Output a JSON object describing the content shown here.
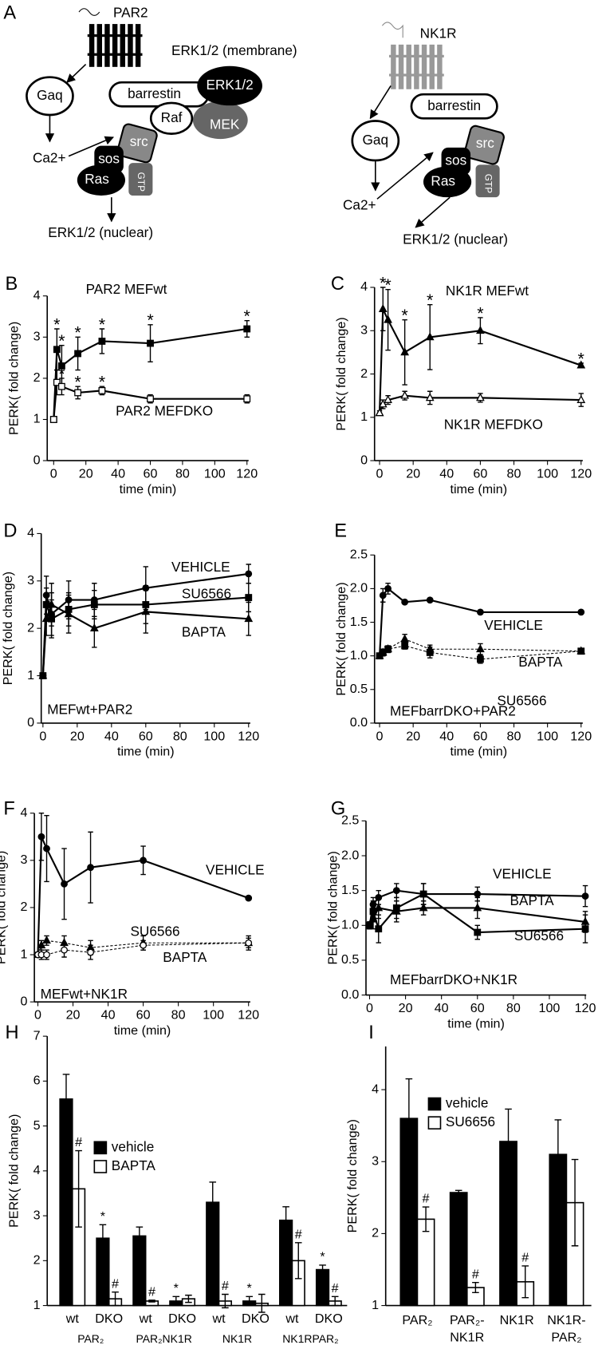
{
  "panel_a": {
    "label": "A",
    "left": [
      "PAR2",
      "ERK1/2 (membrane)",
      "Gaq",
      "barrestin",
      "ERK1/2",
      "MEK",
      "Raf",
      "Ca2+",
      "src",
      "sos",
      "Ras",
      "GTP",
      "ERK1/2 (nuclear)"
    ],
    "right": [
      "NK1R",
      "Gaq",
      "barrestin",
      "src",
      "sos",
      "Ras",
      "GTP",
      "Ca2+",
      "ERK1/2 (nuclear)"
    ]
  },
  "chart_data": [
    {
      "type": "line",
      "panel": "B",
      "y_label": "PERK( fold change)",
      "x_label": "time (min)",
      "x": [
        0,
        2,
        5,
        15,
        30,
        60,
        120
      ],
      "xlim": [
        -4,
        121
      ],
      "xticks": [
        0,
        20,
        40,
        60,
        80,
        100,
        120
      ],
      "ylim": [
        0,
        4
      ],
      "yticks": [
        0,
        1,
        2,
        3,
        4
      ],
      "series": [
        {
          "name": "PAR2 MEFwt",
          "color": "#000000",
          "marker": "square",
          "open": false,
          "dash": false,
          "values": [
            1,
            2.7,
            2.3,
            2.6,
            2.9,
            2.85,
            3.2
          ],
          "errors": [
            0,
            0.5,
            0.5,
            0.4,
            0.3,
            0.45,
            0.2
          ],
          "markers": [
            null,
            "*",
            "*",
            "*",
            "*",
            "*",
            "*"
          ]
        },
        {
          "name": "PAR2 MEFDKO",
          "color": "#000000",
          "marker": "square",
          "open": true,
          "dash": false,
          "values": [
            1,
            1.9,
            1.8,
            1.65,
            1.7,
            1.5,
            1.5
          ],
          "errors": [
            0,
            0.3,
            0.2,
            0.15,
            0.1,
            0.1,
            0.1
          ],
          "markers": [
            null,
            null,
            "*",
            "*",
            "*",
            null,
            null
          ]
        }
      ]
    },
    {
      "type": "line",
      "panel": "C",
      "y_label": "PERK( fold change)",
      "x_label": "time (min)",
      "x": [
        0,
        2,
        5,
        15,
        30,
        60,
        120
      ],
      "xlim": [
        -3,
        121
      ],
      "xticks": [
        0,
        20,
        40,
        60,
        80,
        100,
        120
      ],
      "ylim": [
        0,
        4
      ],
      "yticks": [
        0,
        1,
        2,
        3,
        4
      ],
      "series": [
        {
          "name": "NK1R MEFwt",
          "color": "#000000",
          "marker": "triangle",
          "open": false,
          "dash": false,
          "values": [
            1.1,
            3.5,
            3.25,
            2.5,
            2.85,
            3.0,
            2.2
          ],
          "errors": [
            0,
            0.5,
            0.7,
            0.75,
            0.75,
            0.3,
            0.05
          ],
          "markers": [
            null,
            "*",
            "*",
            "*",
            "*",
            "*",
            "*"
          ]
        },
        {
          "name": "NK1R MEFDKO",
          "color": "#000000",
          "marker": "triangle",
          "open": true,
          "dash": false,
          "values": [
            1.1,
            1.3,
            1.4,
            1.5,
            1.45,
            1.45,
            1.4
          ],
          "errors": [
            0.05,
            0.1,
            0.1,
            0.1,
            0.15,
            0.1,
            0.15
          ],
          "markers": [
            null,
            null,
            null,
            null,
            null,
            null,
            null
          ]
        }
      ]
    },
    {
      "type": "line",
      "panel": "D",
      "y_label": "PERK( fold change)",
      "x_label": "time (min)",
      "annotation": "MEFwt+PAR2",
      "x": [
        0,
        2,
        5,
        15,
        30,
        60,
        120
      ],
      "xlim": [
        -1,
        121
      ],
      "xticks": [
        0,
        20,
        40,
        60,
        80,
        100,
        120
      ],
      "ylim": [
        0,
        4
      ],
      "yticks": [
        0,
        1,
        2,
        3,
        4
      ],
      "series": [
        {
          "name": "VEHICLE",
          "color": "#000000",
          "marker": "circle",
          "open": false,
          "dash": false,
          "values": [
            1,
            2.7,
            2.3,
            2.6,
            2.6,
            2.85,
            3.15
          ],
          "errors": [
            0,
            0.4,
            0.45,
            0.4,
            0.35,
            0.45,
            0.2
          ]
        },
        {
          "name": "SU6566",
          "color": "#000000",
          "marker": "square",
          "open": false,
          "dash": false,
          "values": [
            1,
            2.5,
            2.2,
            2.4,
            2.5,
            2.5,
            2.65
          ],
          "errors": [
            0,
            0.35,
            0.4,
            0.35,
            0.3,
            0.4,
            0.3
          ]
        },
        {
          "name": "BAPTA",
          "color": "#000000",
          "marker": "triangle",
          "open": false,
          "dash": false,
          "values": [
            1,
            2.2,
            2.5,
            2.3,
            2.0,
            2.35,
            2.2
          ],
          "errors": [
            0,
            0.35,
            0.45,
            0.4,
            0.4,
            0.45,
            0.35
          ]
        }
      ]
    },
    {
      "type": "line",
      "panel": "E",
      "y_label": "PERK( fold change)",
      "x_label": "time (min)",
      "annotation": "MEFbarrDKO+PAR2",
      "x": [
        0,
        2,
        5,
        15,
        30,
        60,
        120
      ],
      "xlim": [
        -3,
        121
      ],
      "xticks": [
        0,
        20,
        40,
        60,
        80,
        100,
        120
      ],
      "ylim": [
        0,
        2.5
      ],
      "yticks": [
        {
          "value": 0,
          "label": "0.0"
        },
        0.5,
        {
          "value": 1,
          "label": "1.0"
        },
        1.5,
        {
          "value": 2,
          "label": "2.0"
        },
        2.5
      ],
      "series": [
        {
          "name": "VEHICLE",
          "color": "#000000",
          "marker": "circle",
          "open": false,
          "dash": false,
          "values": [
            1.0,
            1.9,
            2.0,
            1.8,
            1.83,
            1.65,
            1.65
          ],
          "errors": [
            0,
            0.1,
            0.08,
            0.02,
            0.02,
            0.02,
            0.02
          ]
        },
        {
          "name": "BAPTA",
          "color": "#000000",
          "marker": "triangle",
          "open": false,
          "dash": true,
          "values": [
            1.0,
            1.05,
            1.1,
            1.25,
            1.1,
            1.1,
            1.07
          ],
          "errors": [
            0,
            0.05,
            0.05,
            0.07,
            0.06,
            0.08,
            0.03
          ]
        },
        {
          "name": "SU6566",
          "color": "#000000",
          "marker": "square",
          "open": false,
          "dash": true,
          "values": [
            1.0,
            1.05,
            1.1,
            1.15,
            1.05,
            0.95,
            1.07
          ],
          "errors": [
            0,
            0.05,
            0.05,
            0.05,
            0.08,
            0.06,
            0.03
          ]
        }
      ]
    },
    {
      "type": "line",
      "panel": "F",
      "y_label": "PERK( fold change)",
      "x_label": "time (min)",
      "annotation": "MEFwt+NK1R",
      "x": [
        0,
        2,
        5,
        15,
        30,
        60,
        120
      ],
      "xlim": [
        -2,
        121
      ],
      "xticks": [
        0,
        20,
        40,
        60,
        80,
        100,
        120
      ],
      "ylim": [
        0,
        4
      ],
      "yticks": [
        0,
        1,
        2,
        3,
        4
      ],
      "series": [
        {
          "name": "VEHICLE",
          "color": "#000000",
          "marker": "circle",
          "open": false,
          "dash": false,
          "values": [
            1,
            3.5,
            3.25,
            2.5,
            2.85,
            3.0,
            2.2
          ],
          "errors": [
            0,
            0.5,
            0.7,
            0.75,
            0.75,
            0.3,
            0.03
          ]
        },
        {
          "name": "SU6566",
          "color": "#000000",
          "marker": "triangle",
          "open": false,
          "dash": true,
          "values": [
            1.0,
            1.2,
            1.3,
            1.25,
            1.15,
            1.25,
            1.25
          ],
          "errors": [
            0.05,
            0.1,
            0.1,
            0.15,
            0.15,
            0.15,
            0.15
          ]
        },
        {
          "name": "BAPTA",
          "color": "#000000",
          "marker": "circle",
          "open": true,
          "dash": true,
          "values": [
            1.0,
            1.0,
            1.0,
            1.1,
            1.05,
            1.2,
            1.25
          ],
          "errors": [
            0.05,
            0.1,
            0.1,
            0.15,
            0.15,
            0.1,
            0.1
          ]
        }
      ]
    },
    {
      "type": "line",
      "panel": "G",
      "y_label": "PERK( fold change)",
      "x_label": "time (min)",
      "annotation": "MEFbarrDKO+NK1R",
      "x": [
        0,
        2,
        5,
        15,
        30,
        60,
        120
      ],
      "xlim": [
        -2,
        120.5
      ],
      "xticks": [
        0,
        20,
        40,
        60,
        80,
        100,
        120
      ],
      "ylim": [
        0,
        2.5
      ],
      "yticks": [
        {
          "value": 0,
          "label": "0.0"
        },
        0.5,
        {
          "value": 1,
          "label": "1.0"
        },
        1.5,
        {
          "value": 2,
          "label": "2.0"
        },
        2.5
      ],
      "series": [
        {
          "name": "VEHICLE",
          "color": "#000000",
          "marker": "circle",
          "open": false,
          "dash": false,
          "values": [
            1.0,
            1.3,
            1.4,
            1.5,
            1.45,
            1.45,
            1.42
          ],
          "errors": [
            0.05,
            0.1,
            0.1,
            0.1,
            0.15,
            0.1,
            0.15
          ]
        },
        {
          "name": "BAPTA",
          "color": "#000000",
          "marker": "triangle",
          "open": false,
          "dash": false,
          "values": [
            1.0,
            1.1,
            1.25,
            1.2,
            1.25,
            1.25,
            1.05
          ],
          "errors": [
            0.05,
            0.15,
            0.15,
            0.15,
            0.1,
            0.15,
            0.15
          ]
        },
        {
          "name": "SU6566",
          "color": "#000000",
          "marker": "square",
          "open": false,
          "dash": false,
          "values": [
            1.0,
            1.2,
            0.95,
            1.25,
            1.45,
            0.9,
            0.95
          ],
          "errors": [
            0.05,
            0.15,
            0.2,
            0.15,
            0.15,
            0.1,
            0.2
          ]
        }
      ]
    },
    {
      "type": "bar",
      "panel": "H",
      "y_label": "PERK( fold change)",
      "categories": [
        "wt",
        "DKO",
        "wt",
        "DKO",
        "wt",
        "DKO",
        "wt",
        "DKO"
      ],
      "groups": [
        "PAR₂",
        "PAR₂NK1R",
        "NK1R",
        "NK1RPAR₂"
      ],
      "ylim": [
        1,
        7
      ],
      "yticks": [
        1,
        2,
        3,
        4,
        5,
        6,
        7
      ],
      "series": [
        {
          "name": "vehicle",
          "color": "#000000",
          "values": [
            5.6,
            2.5,
            2.55,
            1.1,
            3.3,
            1.1,
            2.9,
            1.8
          ],
          "errors": [
            0.55,
            0.3,
            0.2,
            0.1,
            0.45,
            0.1,
            0.3,
            0.1
          ],
          "markers": [
            null,
            "*",
            null,
            "*",
            null,
            "*",
            null,
            "*"
          ]
        },
        {
          "name": "BAPTA",
          "color": "#ffffff",
          "values": [
            3.6,
            1.15,
            1.1,
            1.15,
            1.1,
            1.05,
            2.0,
            1.1
          ],
          "errors": [
            0.85,
            0.15,
            0.02,
            0.08,
            0.15,
            0.2,
            0.4,
            0.1
          ],
          "markers": [
            "#",
            "#",
            "#",
            null,
            "#",
            null,
            "#",
            "#"
          ]
        }
      ]
    },
    {
      "type": "bar",
      "panel": "I",
      "y_label": "PERK( fold change)",
      "categories": [
        [
          "PAR₂"
        ],
        [
          "PAR₂-",
          "NK1R"
        ],
        [
          "NK1R"
        ],
        [
          "NK1R-",
          "PAR₂"
        ]
      ],
      "ylim": [
        1,
        4.6
      ],
      "yticks": [
        1,
        2,
        3,
        4
      ],
      "series": [
        {
          "name": "vehicle",
          "color": "#000000",
          "values": [
            3.6,
            2.57,
            3.28,
            3.1
          ],
          "errors": [
            0.55,
            0.03,
            0.45,
            0.48
          ],
          "markers": [
            null,
            null,
            null,
            null
          ]
        },
        {
          "name": "SU6656",
          "color": "#ffffff",
          "values": [
            2.2,
            1.25,
            1.33,
            2.43
          ],
          "errors": [
            0.17,
            0.07,
            0.22,
            0.6
          ],
          "markers": [
            "#",
            "#",
            "#",
            null
          ]
        }
      ]
    }
  ]
}
